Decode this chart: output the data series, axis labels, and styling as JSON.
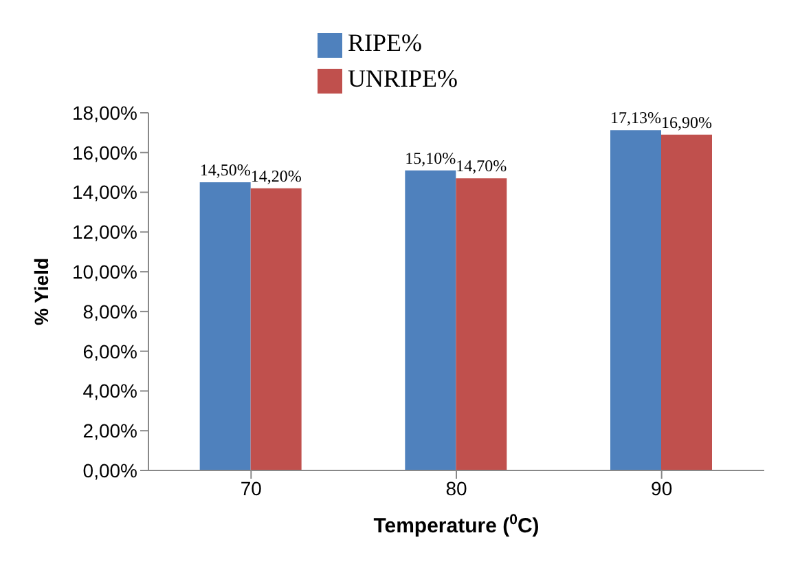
{
  "chart_data": {
    "type": "bar",
    "xlabel": "Temperature ($^{0}$C)",
    "ylabel": "% Yield",
    "categories": [
      "70",
      "80",
      "90"
    ],
    "series": [
      {
        "name": "RIPE%",
        "color": "#4f81bd",
        "values": [
          14.5,
          15.1,
          17.13
        ],
        "value_labels": [
          "14,50%",
          "15,10%",
          "17,13%"
        ]
      },
      {
        "name": "UNRIPE%",
        "color": "#c0504d",
        "values": [
          14.2,
          14.7,
          16.9
        ],
        "value_labels": [
          "14,20%",
          "14,70%",
          "16,90%"
        ]
      }
    ],
    "ylim": [
      0,
      18
    ],
    "yticks": [
      {
        "value": 0,
        "label": "0,00%"
      },
      {
        "value": 2,
        "label": "2,00%"
      },
      {
        "value": 4,
        "label": "4,00%"
      },
      {
        "value": 6,
        "label": "6,00%"
      },
      {
        "value": 8,
        "label": "8,00%"
      },
      {
        "value": 10,
        "label": "10,00%"
      },
      {
        "value": 12,
        "label": "12,00%"
      },
      {
        "value": 14,
        "label": "14,00%"
      },
      {
        "value": 16,
        "label": "16,00%"
      },
      {
        "value": 18,
        "label": "18,00%"
      }
    ],
    "grid": false,
    "legend": "top"
  }
}
